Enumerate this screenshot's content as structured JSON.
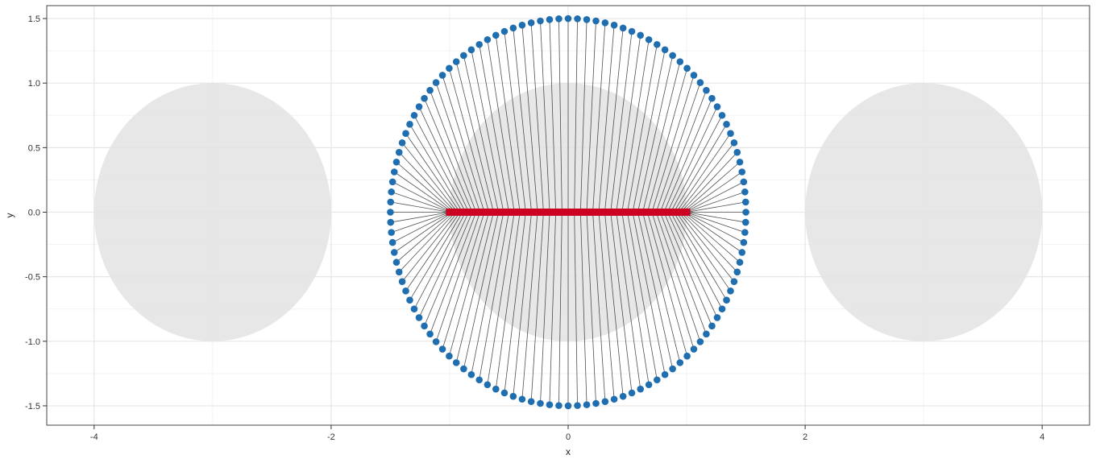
{
  "chart_data": {
    "type": "scatter",
    "title": "",
    "xlabel": "x",
    "ylabel": "y",
    "xlim": [
      -4.4,
      4.4
    ],
    "ylim": [
      -1.65,
      1.6
    ],
    "x_ticks": [
      -4,
      -2,
      0,
      2,
      4
    ],
    "x_tick_labels": [
      "-4",
      "-2",
      "0",
      "2",
      "4"
    ],
    "y_ticks": [
      -1.5,
      -1.0,
      -0.5,
      0.0,
      0.5,
      1.0,
      1.5
    ],
    "y_tick_labels": [
      "-1.5",
      "-1.0",
      "-0.5",
      "0.0",
      "0.5",
      "1.0",
      "1.5"
    ],
    "grid": true,
    "legend": "none",
    "background_discs": [
      {
        "center": [
          -3,
          0
        ],
        "radius": 1
      },
      {
        "center": [
          0,
          0
        ],
        "radius": 1
      },
      {
        "center": [
          3,
          0
        ],
        "radius": 1
      }
    ],
    "series": [
      {
        "marker": "circle",
        "shape": "ring",
        "center": [
          0,
          0
        ],
        "radius_x": 1.5,
        "radius_y": 1.5,
        "count": 120
      },
      {
        "marker": "square",
        "shape": "segment",
        "from": [
          -1,
          0
        ],
        "to": [
          1,
          0
        ],
        "count": 120
      },
      {
        "marker": "line",
        "shape": "connections",
        "connects": "ring-to-segment"
      }
    ],
    "colors": {
      "ring_points": "#1f6fb0",
      "segment_points": "#cc0022",
      "connection_lines": "#333333",
      "discs": "#e3e3e3",
      "grid_major": "#e6e6e6",
      "grid_minor": "#f3f3f3",
      "panel_border": "#444444"
    }
  }
}
